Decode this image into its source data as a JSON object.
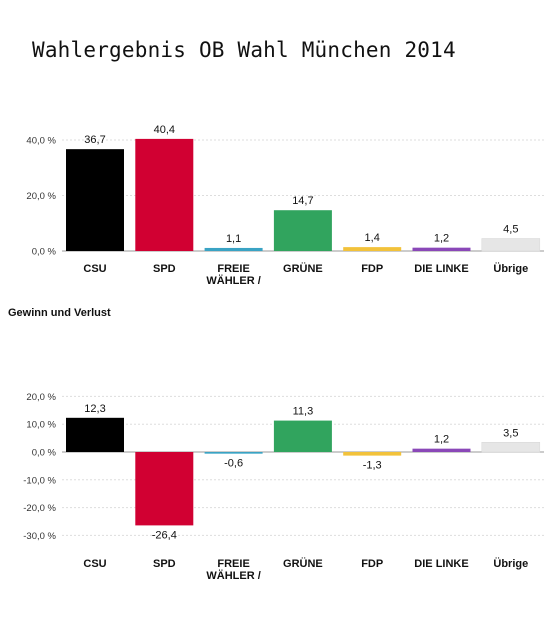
{
  "page": {
    "title": "Wahlergebnis OB Wahl München 2014"
  },
  "chart_data": [
    {
      "type": "bar",
      "title": "",
      "xlabel": "",
      "ylabel": "",
      "ylim": [
        0,
        45
      ],
      "yticks": [
        0,
        20,
        40
      ],
      "ytick_labels": [
        "0,0 %",
        "20,0 %",
        "40,0 %"
      ],
      "categories": [
        "CSU",
        "SPD",
        "FREIE WÄHLER /",
        "GRÜNE",
        "FDP",
        "DIE LINKE",
        "Übrige"
      ],
      "values": [
        36.7,
        40.4,
        1.1,
        14.7,
        1.4,
        1.2,
        4.5
      ],
      "value_labels": [
        "36,7",
        "40,4",
        "1,1",
        "14,7",
        "1,4",
        "1,2",
        "4,5"
      ],
      "colors": [
        "#000000",
        "#d10032",
        "#3aa3c4",
        "#31a45e",
        "#f2c23b",
        "#8a48b8",
        "#e6e6e6"
      ],
      "grid": true,
      "legend": "none"
    },
    {
      "type": "bar",
      "title": "Gewinn und Verlust",
      "xlabel": "",
      "ylabel": "",
      "ylim": [
        -31,
        21
      ],
      "yticks": [
        20,
        10,
        0,
        -10,
        -20,
        -30
      ],
      "ytick_labels": [
        "20,0 %",
        "10,0 %",
        "0,0 %",
        "-10,0 %",
        "-20,0 %",
        "-30,0 %"
      ],
      "categories": [
        "CSU",
        "SPD",
        "FREIE WÄHLER /",
        "GRÜNE",
        "FDP",
        "DIE LINKE",
        "Übrige"
      ],
      "values": [
        12.3,
        -26.4,
        -0.6,
        11.3,
        -1.3,
        1.2,
        3.5
      ],
      "value_labels": [
        "12,3",
        "-26,4",
        "-0,6",
        "11,3",
        "-1,3",
        "1,2",
        "3,5"
      ],
      "colors": [
        "#000000",
        "#d10032",
        "#3aa3c4",
        "#31a45e",
        "#f2c23b",
        "#8a48b8",
        "#e6e6e6"
      ],
      "grid": true,
      "legend": "none"
    }
  ]
}
